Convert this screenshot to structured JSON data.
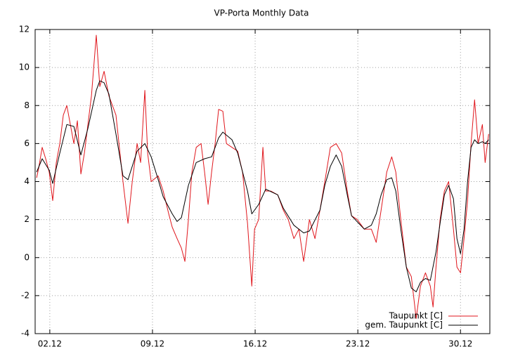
{
  "chart_data": {
    "type": "line",
    "title": "VP-Porta Monthly Data",
    "xlim": [
      1,
      32
    ],
    "ylim": [
      -4,
      12
    ],
    "xticks": [
      {
        "value": 2,
        "label": "02.12"
      },
      {
        "value": 9,
        "label": "09.12"
      },
      {
        "value": 16,
        "label": "16.12"
      },
      {
        "value": 23,
        "label": "23.12"
      },
      {
        "value": 30,
        "label": "30.12"
      }
    ],
    "yticks": [
      -4,
      -2,
      0,
      2,
      4,
      6,
      8,
      10,
      12
    ],
    "grid": true,
    "legend": "bottom-right",
    "series": [
      {
        "name": "Taupunkt [C]",
        "color": "#e0161c",
        "x": [
          1.1,
          1.24,
          1.48,
          1.72,
          1.96,
          2.2,
          2.44,
          2.68,
          2.92,
          3.16,
          3.4,
          3.64,
          3.88,
          4.12,
          4.36,
          4.6,
          4.84,
          5.17,
          5.41,
          5.7,
          6.03,
          6.51,
          6.99,
          7.33,
          7.62,
          7.95,
          8.19,
          8.48,
          8.67,
          8.91,
          9.39,
          9.73,
          10.11,
          10.35,
          10.68,
          10.97,
          11.21,
          11.45,
          11.69,
          11.98,
          12.31,
          12.55,
          12.79,
          13.03,
          13.27,
          13.51,
          13.8,
          14.04,
          14.42,
          14.81,
          15.14,
          15.48,
          15.77,
          15.96,
          16.24,
          16.53,
          16.72,
          17.06,
          17.54,
          17.92,
          18.26,
          18.64,
          18.98,
          19.31,
          19.7,
          20.08,
          20.42,
          20.75,
          21.13,
          21.52,
          21.9,
          22.28,
          22.57,
          22.96,
          23.44,
          23.92,
          24.25,
          24.59,
          24.97,
          25.31,
          25.59,
          25.93,
          26.31,
          26.65,
          26.98,
          27.27,
          27.61,
          27.94,
          28.13,
          28.33,
          28.61,
          28.9,
          29.19,
          29.52,
          29.76,
          30.0,
          30.24,
          30.48,
          30.72,
          30.96,
          31.2,
          31.49,
          31.68,
          31.92
        ],
        "values": [
          4.2,
          4.7,
          5.8,
          5.2,
          4.5,
          3.0,
          5.0,
          6.0,
          7.5,
          8.0,
          7.0,
          6.0,
          7.2,
          4.4,
          5.5,
          7.0,
          8.5,
          11.7,
          9.0,
          9.8,
          8.5,
          7.5,
          4.0,
          1.8,
          4.0,
          6.0,
          5.0,
          8.8,
          5.5,
          4.0,
          4.3,
          3.5,
          2.3,
          1.6,
          1.0,
          0.5,
          -0.2,
          2.0,
          4.5,
          5.8,
          6.0,
          4.5,
          2.8,
          4.5,
          6.0,
          7.8,
          7.7,
          6.0,
          5.8,
          5.6,
          4.5,
          1.8,
          -1.5,
          1.5,
          2.0,
          5.8,
          3.5,
          3.5,
          3.3,
          2.5,
          2.0,
          1.0,
          1.5,
          -0.2,
          2.0,
          1.0,
          2.5,
          4.0,
          5.8,
          6.0,
          5.5,
          3.5,
          2.2,
          2.0,
          1.5,
          1.5,
          0.8,
          2.5,
          4.5,
          5.3,
          4.5,
          2.0,
          -0.5,
          -1.0,
          -3.2,
          -1.5,
          -0.8,
          -1.5,
          -2.6,
          -0.5,
          2.0,
          3.5,
          4.0,
          1.5,
          -0.5,
          -0.8,
          1.0,
          3.0,
          6.0,
          8.3,
          6.0,
          7.0,
          5.0,
          6.5
        ]
      },
      {
        "name": "gem. Taupunkt [C]",
        "color": "#000000",
        "x": [
          1.1,
          1.48,
          1.96,
          2.2,
          2.68,
          3.16,
          3.64,
          4.12,
          4.6,
          5.17,
          5.41,
          5.7,
          6.03,
          6.51,
          6.99,
          7.33,
          7.95,
          8.48,
          8.91,
          9.39,
          9.73,
          10.35,
          10.68,
          10.97,
          11.45,
          11.98,
          12.55,
          13.03,
          13.51,
          13.8,
          14.42,
          14.81,
          15.48,
          15.77,
          16.24,
          16.72,
          17.54,
          17.92,
          18.64,
          19.31,
          19.7,
          20.42,
          20.75,
          21.13,
          21.52,
          21.9,
          22.28,
          22.57,
          23.44,
          23.92,
          24.25,
          24.59,
          24.97,
          25.31,
          25.59,
          25.93,
          26.31,
          26.65,
          26.98,
          27.27,
          27.61,
          27.94,
          28.33,
          28.61,
          28.9,
          29.19,
          29.52,
          29.76,
          30.0,
          30.24,
          30.48,
          30.72,
          30.96,
          31.2,
          31.49,
          31.68,
          31.92
        ],
        "values": [
          4.5,
          5.2,
          4.6,
          3.9,
          5.5,
          7.0,
          6.9,
          5.4,
          6.8,
          8.8,
          9.3,
          9.2,
          8.6,
          6.5,
          4.3,
          4.1,
          5.6,
          6.0,
          5.3,
          4.1,
          3.2,
          2.3,
          1.9,
          2.1,
          3.8,
          5.0,
          5.2,
          5.3,
          6.3,
          6.6,
          6.2,
          5.5,
          3.5,
          2.3,
          2.8,
          3.6,
          3.3,
          2.6,
          1.7,
          1.3,
          1.4,
          2.5,
          3.8,
          4.8,
          5.4,
          4.8,
          3.3,
          2.2,
          1.5,
          1.7,
          2.3,
          3.3,
          4.1,
          4.2,
          3.5,
          1.5,
          -0.5,
          -1.6,
          -1.8,
          -1.3,
          -1.1,
          -1.2,
          0.3,
          1.8,
          3.3,
          3.8,
          3.1,
          1.0,
          0.2,
          1.5,
          4.0,
          5.8,
          6.2,
          6.0,
          6.1,
          6.0,
          6.2
        ]
      }
    ]
  }
}
